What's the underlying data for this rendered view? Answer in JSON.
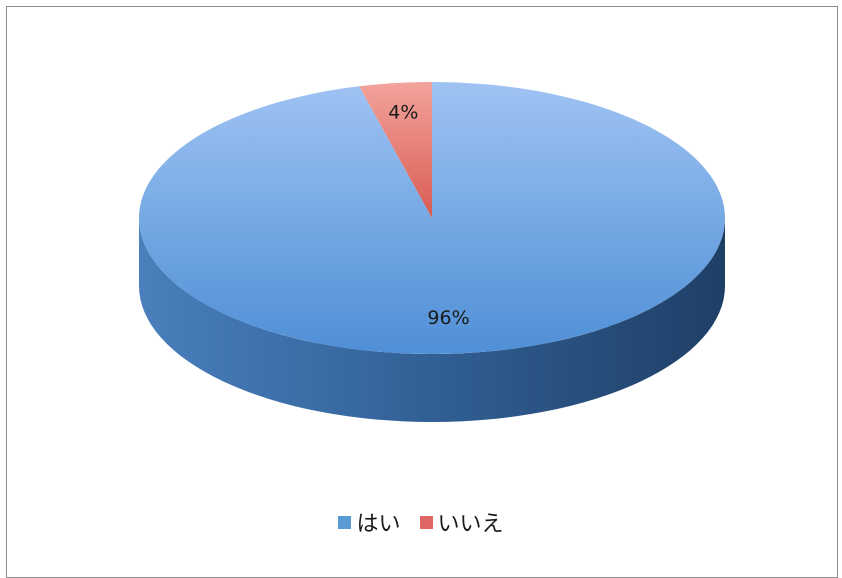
{
  "chart_data": {
    "type": "pie",
    "title": "",
    "categories": [
      "はい",
      "いいえ"
    ],
    "values": [
      96,
      4
    ],
    "data_labels": [
      "96%",
      "4%"
    ],
    "colors": [
      "#5b9bd5",
      "#e06666"
    ],
    "three_d": true,
    "legend_position": "bottom"
  }
}
